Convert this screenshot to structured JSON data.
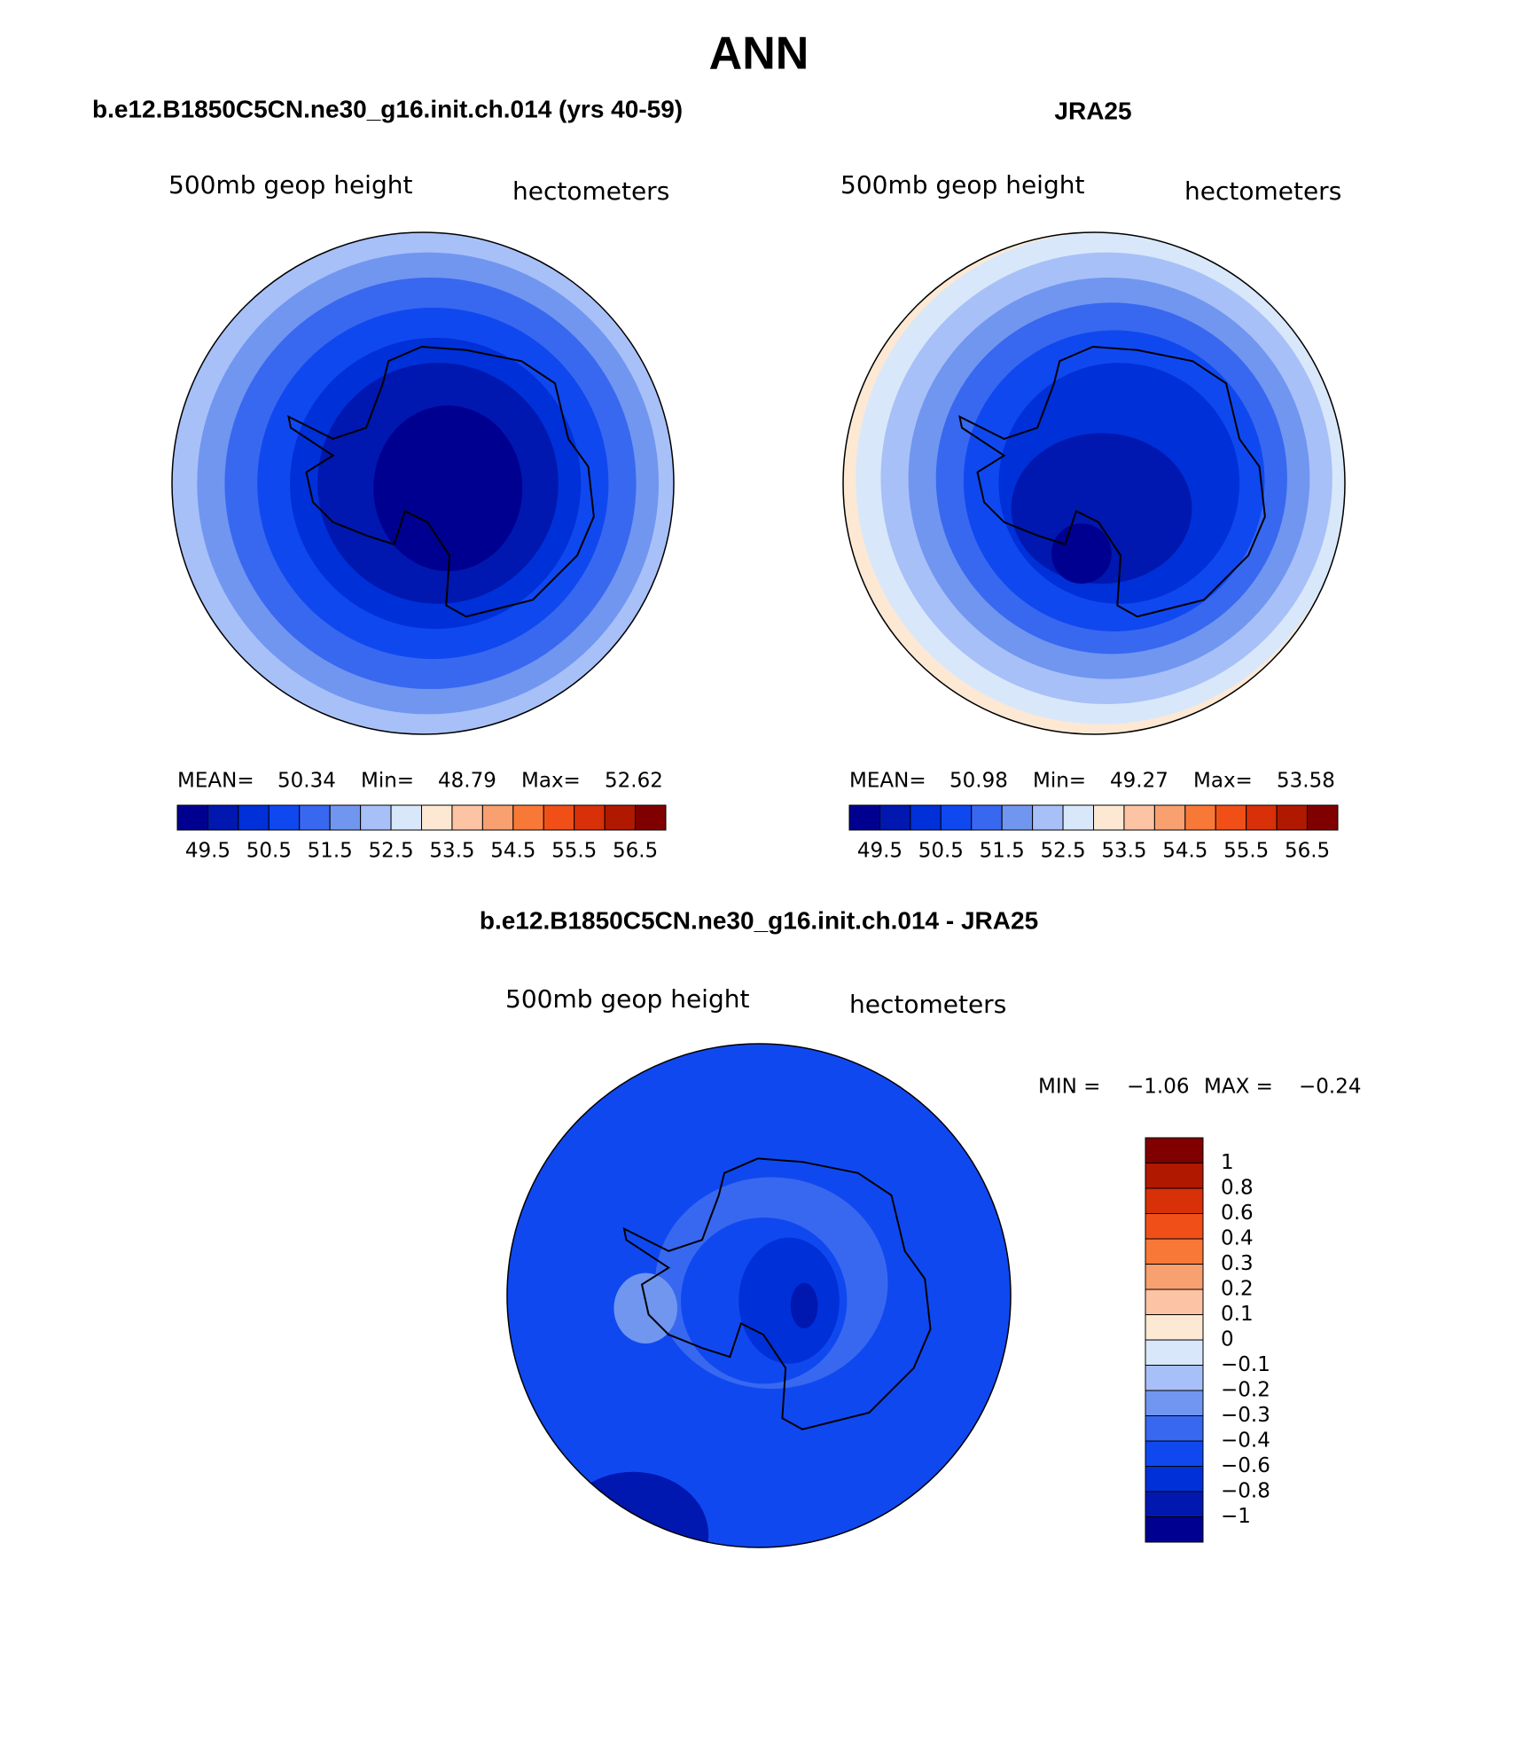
{
  "title": "ANN",
  "panels": [
    {
      "title": "b.e12.B1850C5CN.ne30_g16.init.ch.014 (yrs 40-59)",
      "subtitle_left": "500mb geop height",
      "subtitle_right": "hectometers",
      "stats": [
        {
          "label": "MEAN=",
          "value": 50.34
        },
        {
          "label": "Min=",
          "value": 48.79
        },
        {
          "label": "Max=",
          "value": 52.62
        }
      ],
      "colorbar": {
        "colors": [
          "#000090",
          "#0018b0",
          "#0030d8",
          "#1048f0",
          "#3868f0",
          "#7096f0",
          "#a8c0f8",
          "#d8e8fa",
          "#fde8d4",
          "#fcc4a4",
          "#f8a070",
          "#f87838",
          "#f05018",
          "#d83008",
          "#b01800",
          "#800000"
        ],
        "labels": [
          49.5,
          50.5,
          51.5,
          52.5,
          53.5,
          54.5,
          55.5,
          56.5
        ]
      }
    },
    {
      "title": "JRA25",
      "subtitle_left": "500mb geop height",
      "subtitle_right": "hectometers",
      "stats": [
        {
          "label": "MEAN=",
          "value": 50.98
        },
        {
          "label": "Min=",
          "value": 49.27
        },
        {
          "label": "Max=",
          "value": 53.58
        }
      ],
      "colorbar": {
        "colors": [
          "#000090",
          "#0018b0",
          "#0030d8",
          "#1048f0",
          "#3868f0",
          "#7096f0",
          "#a8c0f8",
          "#d8e8fa",
          "#fde8d4",
          "#fcc4a4",
          "#f8a070",
          "#f87838",
          "#f05018",
          "#d83008",
          "#b01800",
          "#800000"
        ],
        "labels": [
          49.5,
          50.5,
          51.5,
          52.5,
          53.5,
          54.5,
          55.5,
          56.5
        ]
      }
    }
  ],
  "difference": {
    "title": "b.e12.B1850C5CN.ne30_g16.init.ch.014 - JRA25",
    "subtitle_left": "500mb geop height",
    "subtitle_right": "hectometers",
    "stats": [
      {
        "label": "MIN =",
        "value": "−1.06"
      },
      {
        "label": "MAX =",
        "value": "−0.24"
      }
    ],
    "colorbar": {
      "colors": [
        "#800000",
        "#b01800",
        "#d83008",
        "#f05018",
        "#f87838",
        "#f8a070",
        "#fcc4a4",
        "#fde8d4",
        "#d8e8fa",
        "#a8c0f8",
        "#7096f0",
        "#3868f0",
        "#1048f0",
        "#0030d8",
        "#0018b0",
        "#000090"
      ],
      "labels": [
        "1",
        "0.8",
        "0.6",
        "0.4",
        "0.3",
        "0.2",
        "0.1",
        "0",
        "−0.1",
        "−0.2",
        "−0.3",
        "−0.4",
        "−0.6",
        "−0.8",
        "−1"
      ]
    }
  }
}
